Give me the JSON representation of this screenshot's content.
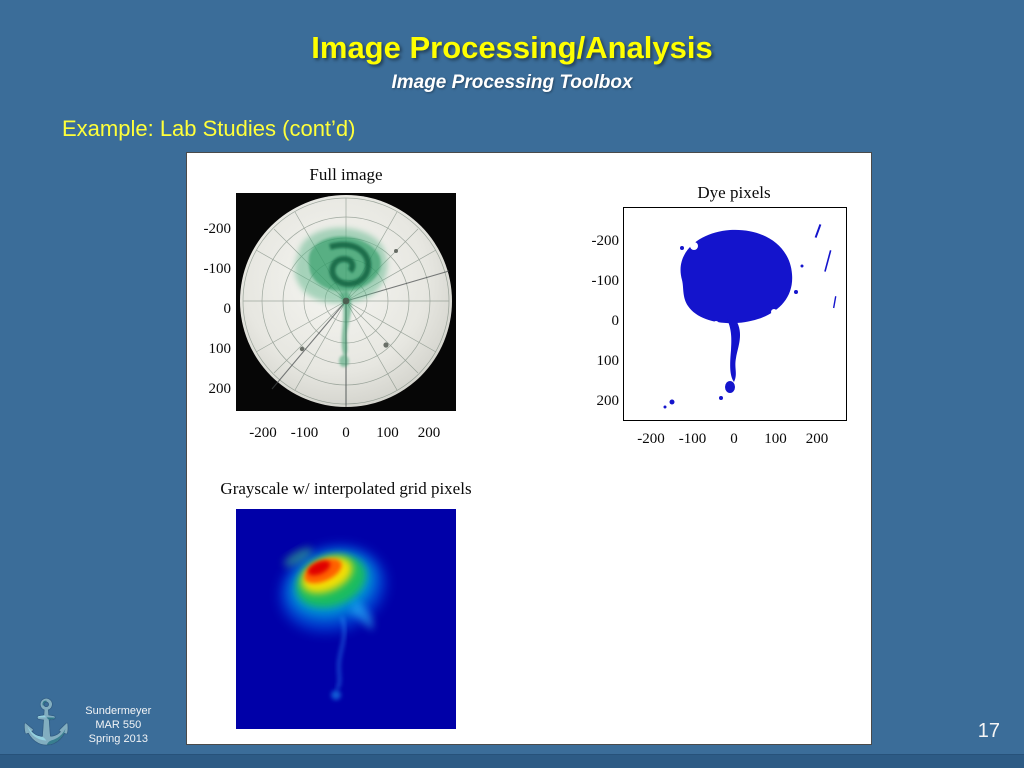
{
  "slide": {
    "title": "Image Processing/Analysis",
    "subtitle": "Image Processing Toolbox",
    "section_heading": "Example: Lab Studies (cont’d)",
    "page_number": "17"
  },
  "footer": {
    "author": "Sundermeyer",
    "course": "MAR 550",
    "term": "Spring 2013",
    "logo": "anchor-icon"
  },
  "figures": [
    {
      "title": "Full image",
      "type": "photo",
      "content": "circular tank photo with green dye patch over polar grid",
      "x_ticks": [
        "-200",
        "-100",
        "0",
        "100",
        "200"
      ],
      "y_ticks": [
        "-200",
        "-100",
        "0",
        "100",
        "200"
      ],
      "axis_range": [
        -270,
        270
      ]
    },
    {
      "title": "Dye pixels",
      "type": "binary-mask",
      "content": "blue dye mask blob on white background",
      "mask_color": "#1414cc",
      "x_ticks": [
        "-200",
        "-100",
        "0",
        "100",
        "200"
      ],
      "y_ticks": [
        "-200",
        "-100",
        "0",
        "100",
        "200"
      ],
      "axis_range": [
        -270,
        270
      ]
    },
    {
      "title": "Grayscale w/ interpolated grid pixels",
      "type": "heatmap",
      "content": "jet-colormap dye concentration blob on dark blue field",
      "colormap": "jet",
      "background": "#0000a8"
    }
  ],
  "colors": {
    "slide_background": "#3b6d99",
    "title_yellow": "#ffff00",
    "heading_yellow": "#ffff3a",
    "subtitle_white": "#ffffff",
    "panel_white": "#ffffff",
    "footer_bar": "#2d5b85",
    "dye_green": "#2a9a63",
    "dye_blue": "#1414cc"
  }
}
